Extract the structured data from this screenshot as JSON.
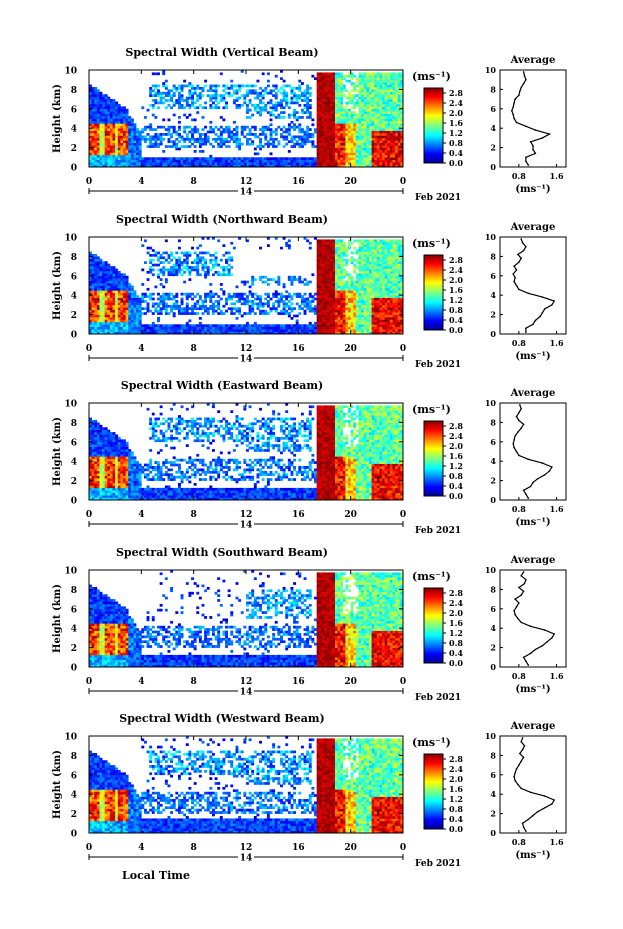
{
  "figure": {
    "date_label": "Feb 2021",
    "xlabel_bottom": "Local Time"
  },
  "chart_data": [
    {
      "type": "heatmap",
      "title": "Spectral Width (Vertical Beam)",
      "xlabel": "",
      "ylabel": "Height (km)",
      "xlim": [
        0,
        24
      ],
      "ylim": [
        0,
        10
      ],
      "x_ticks": [
        "0",
        "4",
        "8",
        "12",
        "16",
        "20",
        "0"
      ],
      "y_ticks": [
        "0",
        "2",
        "4",
        "6",
        "8",
        "10"
      ],
      "day_label": "14",
      "colorbar": {
        "unit": "(ms⁻¹)",
        "min": 0.0,
        "max": 3.0,
        "ticks": [
          "0.0",
          "0.4",
          "0.8",
          "1.2",
          "1.6",
          "2.0",
          "2.4",
          "2.8"
        ]
      },
      "profile": {
        "title": "Average",
        "xlabel": "(ms⁻¹)",
        "x_ticks": [
          "0.8",
          "1.6"
        ],
        "y_ticks": [
          "0",
          "2",
          "4",
          "6",
          "8",
          "10"
        ],
        "height": [
          0.2,
          0.6,
          1.0,
          1.4,
          1.8,
          2.2,
          2.6,
          3.0,
          3.4,
          3.8,
          4.2,
          4.6,
          5.0,
          5.4,
          5.8,
          6.2,
          6.6,
          7.0,
          7.4,
          7.8,
          8.2,
          8.6,
          9.0,
          9.4,
          9.8
        ],
        "value": [
          1.0,
          0.95,
          0.95,
          1.15,
          1.1,
          1.1,
          1.05,
          1.3,
          1.45,
          1.15,
          0.95,
          0.75,
          0.7,
          0.68,
          0.65,
          0.68,
          0.7,
          0.72,
          0.8,
          0.82,
          0.85,
          0.9,
          0.95,
          0.92,
          0.9
        ]
      }
    },
    {
      "type": "heatmap",
      "title": "Spectral Width (Northward Beam)",
      "xlabel": "",
      "ylabel": "Height (km)",
      "xlim": [
        0,
        24
      ],
      "ylim": [
        0,
        10
      ],
      "x_ticks": [
        "0",
        "4",
        "8",
        "12",
        "16",
        "20",
        "0"
      ],
      "y_ticks": [
        "0",
        "2",
        "4",
        "6",
        "8",
        "10"
      ],
      "day_label": "14",
      "colorbar": {
        "unit": "(ms⁻¹)",
        "min": 0.0,
        "max": 3.0,
        "ticks": [
          "0.0",
          "0.4",
          "0.8",
          "1.2",
          "1.6",
          "2.0",
          "2.4",
          "2.8"
        ]
      },
      "profile": {
        "title": "Average",
        "xlabel": "(ms⁻¹)",
        "x_ticks": [
          "0.8",
          "1.6"
        ],
        "y_ticks": [
          "0",
          "2",
          "4",
          "6",
          "8",
          "10"
        ],
        "height": [
          0.2,
          0.6,
          1.0,
          1.4,
          1.8,
          2.2,
          2.6,
          3.0,
          3.4,
          3.8,
          4.2,
          4.6,
          5.0,
          5.4,
          5.8,
          6.2,
          6.6,
          7.0,
          7.4,
          7.8,
          8.2,
          8.6,
          9.0,
          9.4,
          9.8
        ],
        "value": [
          0.95,
          0.95,
          1.1,
          1.15,
          1.25,
          1.3,
          1.35,
          1.5,
          1.55,
          1.3,
          1.0,
          0.8,
          0.75,
          0.7,
          0.72,
          0.68,
          0.75,
          0.7,
          0.8,
          0.85,
          0.78,
          0.9,
          0.95,
          0.88,
          0.85
        ]
      }
    },
    {
      "type": "heatmap",
      "title": "Spectral Width (Eastward Beam)",
      "xlabel": "",
      "ylabel": "Height (km)",
      "xlim": [
        0,
        24
      ],
      "ylim": [
        0,
        10
      ],
      "x_ticks": [
        "0",
        "4",
        "8",
        "12",
        "16",
        "20",
        "0"
      ],
      "y_ticks": [
        "0",
        "2",
        "4",
        "6",
        "8",
        "10"
      ],
      "day_label": "14",
      "colorbar": {
        "unit": "(ms⁻¹)",
        "min": 0.0,
        "max": 3.0,
        "ticks": [
          "0.0",
          "0.4",
          "0.8",
          "1.2",
          "1.6",
          "2.0",
          "2.4",
          "2.8"
        ]
      },
      "profile": {
        "title": "Average",
        "xlabel": "(ms⁻¹)",
        "x_ticks": [
          "0.8",
          "1.6"
        ],
        "y_ticks": [
          "0",
          "2",
          "4",
          "6",
          "8",
          "10"
        ],
        "height": [
          0.2,
          0.6,
          1.0,
          1.4,
          1.8,
          2.2,
          2.6,
          3.0,
          3.4,
          3.8,
          4.2,
          4.6,
          5.0,
          5.4,
          5.8,
          6.2,
          6.6,
          7.0,
          7.4,
          7.8,
          8.2,
          8.6,
          9.0,
          9.4,
          9.8
        ],
        "value": [
          1.0,
          0.95,
          0.9,
          1.05,
          1.1,
          1.2,
          1.35,
          1.45,
          1.5,
          1.3,
          1.0,
          0.8,
          0.75,
          0.7,
          0.68,
          0.7,
          0.72,
          0.78,
          0.85,
          0.9,
          0.8,
          0.75,
          0.8,
          0.85,
          0.82
        ]
      }
    },
    {
      "type": "heatmap",
      "title": "Spectral Width (Southward Beam)",
      "xlabel": "",
      "ylabel": "Height (km)",
      "xlim": [
        0,
        24
      ],
      "ylim": [
        0,
        10
      ],
      "x_ticks": [
        "0",
        "4",
        "8",
        "12",
        "16",
        "20",
        "0"
      ],
      "y_ticks": [
        "0",
        "2",
        "4",
        "6",
        "8",
        "10"
      ],
      "day_label": "14",
      "colorbar": {
        "unit": "(ms⁻¹)",
        "min": 0.0,
        "max": 3.0,
        "ticks": [
          "0.0",
          "0.4",
          "0.8",
          "1.2",
          "1.6",
          "2.0",
          "2.4",
          "2.8"
        ]
      },
      "profile": {
        "title": "Average",
        "xlabel": "(ms⁻¹)",
        "x_ticks": [
          "0.8",
          "1.6"
        ],
        "y_ticks": [
          "0",
          "2",
          "4",
          "6",
          "8",
          "10"
        ],
        "height": [
          0.2,
          0.6,
          1.0,
          1.4,
          1.8,
          2.2,
          2.6,
          3.0,
          3.4,
          3.8,
          4.2,
          4.6,
          5.0,
          5.4,
          5.8,
          6.2,
          6.6,
          7.0,
          7.4,
          7.8,
          8.2,
          8.6,
          9.0,
          9.4,
          9.8
        ],
        "value": [
          1.0,
          0.95,
          0.9,
          1.05,
          1.15,
          1.3,
          1.4,
          1.5,
          1.55,
          1.35,
          1.05,
          0.85,
          0.78,
          0.72,
          0.7,
          0.75,
          0.8,
          0.72,
          0.85,
          0.9,
          0.8,
          0.92,
          0.95,
          0.85,
          0.9
        ]
      }
    },
    {
      "type": "heatmap",
      "title": "Spectral Width (Westward Beam)",
      "xlabel": "Local Time",
      "ylabel": "Height (km)",
      "xlim": [
        0,
        24
      ],
      "ylim": [
        0,
        10
      ],
      "x_ticks": [
        "0",
        "4",
        "8",
        "12",
        "16",
        "20",
        "0"
      ],
      "y_ticks": [
        "0",
        "2",
        "4",
        "6",
        "8",
        "10"
      ],
      "day_label": "14",
      "colorbar": {
        "unit": "(ms⁻¹)",
        "min": 0.0,
        "max": 3.0,
        "ticks": [
          "0.0",
          "0.4",
          "0.8",
          "1.2",
          "1.6",
          "2.0",
          "2.4",
          "2.8"
        ]
      },
      "profile": {
        "title": "Average",
        "xlabel": "(ms⁻¹)",
        "x_ticks": [
          "0.8",
          "1.6"
        ],
        "y_ticks": [
          "0",
          "2",
          "4",
          "6",
          "8",
          "10"
        ],
        "height": [
          0.2,
          0.6,
          1.0,
          1.4,
          1.8,
          2.2,
          2.6,
          3.0,
          3.4,
          3.8,
          4.2,
          4.6,
          5.0,
          5.4,
          5.8,
          6.2,
          6.6,
          7.0,
          7.4,
          7.8,
          8.2,
          8.6,
          9.0,
          9.4,
          9.8
        ],
        "value": [
          0.95,
          0.9,
          0.88,
          1.0,
          1.1,
          1.2,
          1.35,
          1.5,
          1.55,
          1.35,
          1.05,
          0.85,
          0.78,
          0.72,
          0.7,
          0.72,
          0.75,
          0.8,
          0.85,
          0.9,
          0.82,
          0.88,
          0.92,
          0.85,
          0.88
        ]
      }
    }
  ]
}
